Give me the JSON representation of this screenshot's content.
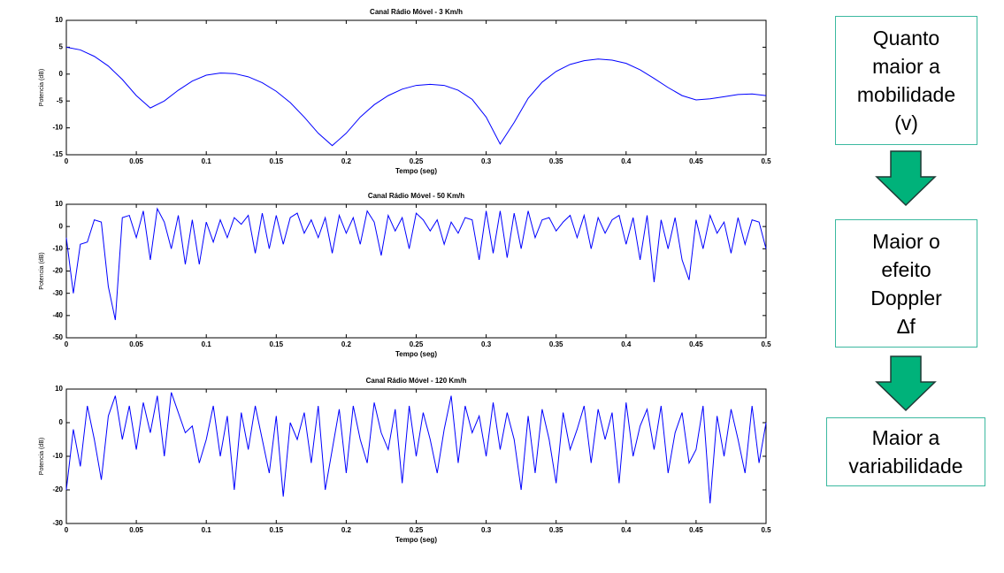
{
  "chart_data": [
    {
      "type": "line",
      "title": "Canal Rádio Móvel - 3 Km/h",
      "xlabel": "Tempo (seg)",
      "ylabel": "Potencia (dB)",
      "xlim": [
        0,
        0.5
      ],
      "xticks": [
        0,
        0.05,
        0.1,
        0.15,
        0.2,
        0.25,
        0.3,
        0.35,
        0.4,
        0.45,
        0.5
      ],
      "ylim": [
        -15,
        10
      ],
      "yticks": [
        -15,
        -10,
        -5,
        0,
        5,
        10
      ],
      "x": [
        0,
        0.01,
        0.02,
        0.03,
        0.04,
        0.05,
        0.06,
        0.07,
        0.08,
        0.09,
        0.1,
        0.11,
        0.12,
        0.13,
        0.14,
        0.15,
        0.16,
        0.17,
        0.18,
        0.19,
        0.2,
        0.21,
        0.22,
        0.23,
        0.24,
        0.25,
        0.26,
        0.27,
        0.28,
        0.29,
        0.3,
        0.31,
        0.32,
        0.33,
        0.34,
        0.35,
        0.36,
        0.37,
        0.38,
        0.39,
        0.4,
        0.41,
        0.42,
        0.43,
        0.44,
        0.45,
        0.46,
        0.47,
        0.48,
        0.49,
        0.5
      ],
      "series": [
        {
          "color": "#0000ff",
          "values": [
            5,
            4.5,
            3.3,
            1.5,
            -1,
            -4,
            -6.3,
            -5,
            -3,
            -1.3,
            -0.2,
            0.2,
            0.1,
            -0.5,
            -1.6,
            -3.2,
            -5.3,
            -8,
            -11,
            -13.3,
            -11,
            -8,
            -5.7,
            -4,
            -2.8,
            -2.1,
            -1.9,
            -2.1,
            -3,
            -4.7,
            -8,
            -13,
            -9,
            -4.5,
            -1.5,
            0.5,
            1.8,
            2.5,
            2.8,
            2.6,
            2,
            0.8,
            -0.8,
            -2.5,
            -4,
            -4.8,
            -4.6,
            -4.2,
            -3.8,
            -3.7,
            -4
          ]
        }
      ]
    },
    {
      "type": "line",
      "title": "Canal Rádio Móvel - 50 Km/h",
      "xlabel": "Tempo (seg)",
      "ylabel": "Potencia (dB)",
      "xlim": [
        0,
        0.5
      ],
      "xticks": [
        0,
        0.05,
        0.1,
        0.15,
        0.2,
        0.25,
        0.3,
        0.35,
        0.4,
        0.45,
        0.5
      ],
      "ylim": [
        -50,
        10
      ],
      "yticks": [
        -50,
        -40,
        -30,
        -20,
        -10,
        0,
        10
      ],
      "x": [
        0,
        0.005,
        0.01,
        0.015,
        0.02,
        0.025,
        0.03,
        0.035,
        0.04,
        0.045,
        0.05,
        0.055,
        0.06,
        0.065,
        0.07,
        0.075,
        0.08,
        0.085,
        0.09,
        0.095,
        0.1,
        0.105,
        0.11,
        0.115,
        0.12,
        0.125,
        0.13,
        0.135,
        0.14,
        0.145,
        0.15,
        0.155,
        0.16,
        0.165,
        0.17,
        0.175,
        0.18,
        0.185,
        0.19,
        0.195,
        0.2,
        0.205,
        0.21,
        0.215,
        0.22,
        0.225,
        0.23,
        0.235,
        0.24,
        0.245,
        0.25,
        0.255,
        0.26,
        0.265,
        0.27,
        0.275,
        0.28,
        0.285,
        0.29,
        0.295,
        0.3,
        0.305,
        0.31,
        0.315,
        0.32,
        0.325,
        0.33,
        0.335,
        0.34,
        0.345,
        0.35,
        0.355,
        0.36,
        0.365,
        0.37,
        0.375,
        0.38,
        0.385,
        0.39,
        0.395,
        0.4,
        0.405,
        0.41,
        0.415,
        0.42,
        0.425,
        0.43,
        0.435,
        0.44,
        0.445,
        0.45,
        0.455,
        0.46,
        0.465,
        0.47,
        0.475,
        0.48,
        0.485,
        0.49,
        0.495,
        0.5
      ],
      "series": [
        {
          "color": "#0000ff",
          "values": [
            -5,
            -30,
            -8,
            -7,
            3,
            2,
            -27,
            -42,
            4,
            5,
            -5,
            7,
            -15,
            8,
            2,
            -10,
            5,
            -17,
            3,
            -17,
            2,
            -7,
            3,
            -5,
            4,
            1,
            5,
            -12,
            6,
            -10,
            5,
            -8,
            4,
            6,
            -3,
            3,
            -5,
            4,
            -12,
            5,
            -3,
            4,
            -8,
            7,
            2,
            -13,
            5,
            -2,
            4,
            -10,
            6,
            3,
            -2,
            3,
            -8,
            2,
            -3,
            4,
            3,
            -15,
            7,
            -12,
            7,
            -14,
            6,
            -10,
            7,
            -5,
            3,
            4,
            -2,
            2,
            5,
            -5,
            5,
            -10,
            4,
            -3,
            3,
            5,
            -8,
            4,
            -15,
            5,
            -25,
            3,
            -10,
            4,
            -15,
            -24,
            3,
            -10,
            5,
            -3,
            2,
            -12,
            4,
            -8,
            3,
            2,
            -10
          ]
        }
      ]
    },
    {
      "type": "line",
      "title": "Canal Rádio Móvel - 120 Km/h",
      "xlabel": "Tempo (seg)",
      "ylabel": "Potencia (dB)",
      "xlim": [
        0,
        0.5
      ],
      "xticks": [
        0,
        0.05,
        0.1,
        0.15,
        0.2,
        0.25,
        0.3,
        0.35,
        0.4,
        0.45,
        0.5
      ],
      "ylim": [
        -30,
        10
      ],
      "yticks": [
        -30,
        -20,
        -10,
        0,
        10
      ],
      "x": [
        0,
        0.005,
        0.01,
        0.015,
        0.02,
        0.025,
        0.03,
        0.035,
        0.04,
        0.045,
        0.05,
        0.055,
        0.06,
        0.065,
        0.07,
        0.075,
        0.08,
        0.085,
        0.09,
        0.095,
        0.1,
        0.105,
        0.11,
        0.115,
        0.12,
        0.125,
        0.13,
        0.135,
        0.14,
        0.145,
        0.15,
        0.155,
        0.16,
        0.165,
        0.17,
        0.175,
        0.18,
        0.185,
        0.19,
        0.195,
        0.2,
        0.205,
        0.21,
        0.215,
        0.22,
        0.225,
        0.23,
        0.235,
        0.24,
        0.245,
        0.25,
        0.255,
        0.26,
        0.265,
        0.27,
        0.275,
        0.28,
        0.285,
        0.29,
        0.295,
        0.3,
        0.305,
        0.31,
        0.315,
        0.32,
        0.325,
        0.33,
        0.335,
        0.34,
        0.345,
        0.35,
        0.355,
        0.36,
        0.365,
        0.37,
        0.375,
        0.38,
        0.385,
        0.39,
        0.395,
        0.4,
        0.405,
        0.41,
        0.415,
        0.42,
        0.425,
        0.43,
        0.435,
        0.44,
        0.445,
        0.45,
        0.455,
        0.46,
        0.465,
        0.47,
        0.475,
        0.48,
        0.485,
        0.49,
        0.495,
        0.5
      ],
      "series": [
        {
          "color": "#0000ff",
          "values": [
            -20,
            -2,
            -13,
            5,
            -5,
            -17,
            2,
            8,
            -5,
            5,
            -8,
            6,
            -3,
            8,
            -10,
            9,
            3,
            -3,
            -1,
            -12,
            -5,
            5,
            -10,
            2,
            -20,
            3,
            -8,
            5,
            -5,
            -15,
            2,
            -22,
            0,
            -5,
            3,
            -12,
            5,
            -20,
            -8,
            4,
            -15,
            5,
            -5,
            -12,
            6,
            -3,
            -8,
            4,
            -18,
            5,
            -10,
            3,
            -5,
            -15,
            -2,
            8,
            -12,
            5,
            -3,
            2,
            -10,
            6,
            -8,
            3,
            -5,
            -20,
            2,
            -15,
            4,
            -5,
            -18,
            3,
            -8,
            -2,
            5,
            -12,
            4,
            -5,
            3,
            -18,
            6,
            -10,
            -1,
            4,
            -8,
            5,
            -15,
            -3,
            3,
            -12,
            -8,
            5,
            -24,
            2,
            -10,
            4,
            -5,
            -15,
            5,
            -12,
            0
          ]
        }
      ]
    }
  ],
  "flow": {
    "boxes": [
      {
        "lines": [
          "Quanto",
          "maior a",
          "mobilidade",
          "(v)"
        ]
      },
      {
        "lines": [
          "Maior o",
          "efeito",
          "Doppler",
          "∆f"
        ]
      },
      {
        "lines": [
          "Maior a",
          "variabilidade"
        ]
      }
    ]
  }
}
